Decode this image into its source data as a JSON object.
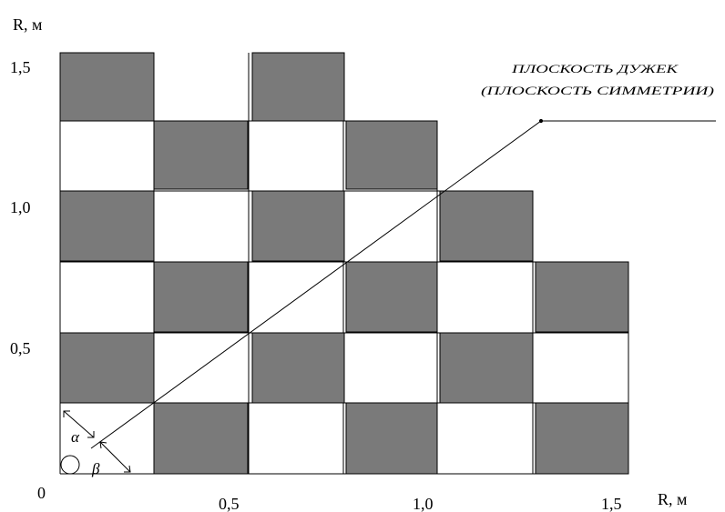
{
  "axes": {
    "y_label": "R, м",
    "x_label": "R, м",
    "origin": "0",
    "y_ticks": [
      "1,5",
      "1,0",
      "0,5"
    ],
    "x_ticks": [
      "0,5",
      "1,0",
      "1,5"
    ]
  },
  "annotation": {
    "line1": "ПЛОСКОСТЬ ДУЖЕК",
    "line2": "(ПЛОСКОСТЬ СИММЕТРИИ)"
  },
  "angles": {
    "alpha": "α",
    "beta": "β"
  },
  "colors": {
    "cell_fill": "#7a7a7a",
    "grid_line": "#000000"
  }
}
